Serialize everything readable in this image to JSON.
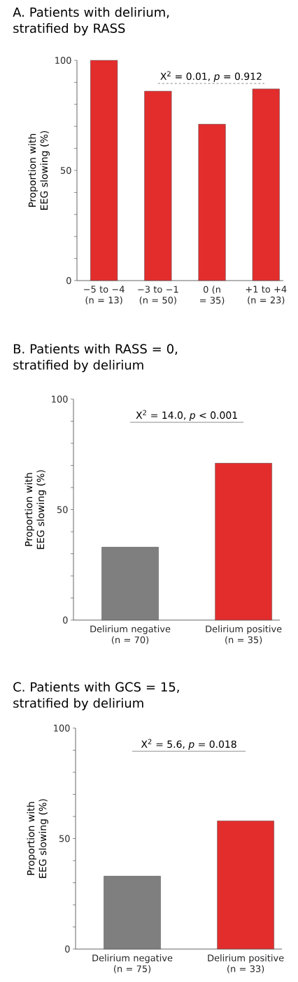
{
  "chart_data": [
    {
      "type": "bar",
      "title": "A. Patients with delirium, stratified by RASS",
      "ylabel": "Proportion with EEG slowing (%)",
      "categories": [
        "−5 to −4 (n = 13)",
        "−3 to −1 (n = 50)",
        "0 (n = 35)",
        "+1 to +4 (n = 23)"
      ],
      "values": [
        100,
        86,
        71,
        87
      ],
      "colors": [
        "#e32d2d",
        "#e32d2d",
        "#e32d2d",
        "#e32d2d"
      ],
      "ylim": [
        0,
        100
      ],
      "yticks": [
        0,
        {
          "value": 10,
          "label": null
        },
        {
          "value": 20,
          "label": null
        },
        {
          "value": 30,
          "label": null
        },
        {
          "value": 40,
          "label": null
        },
        50,
        {
          "value": 60,
          "label": null
        },
        {
          "value": 70,
          "label": null
        },
        {
          "value": 80,
          "label": null
        },
        {
          "value": 90,
          "label": null
        },
        100
      ],
      "annotations": [
        "X$^{2}$ = 0.01, *p* = 0.912"
      ]
    },
    {
      "type": "bar",
      "title": "B. Patients with RASS = 0, stratified by delirium",
      "ylabel": "Proportion with EEG slowing (%)",
      "categories": [
        "Delirium negative (n = 70)",
        "Delirium positive (n = 35)"
      ],
      "values": [
        33,
        71
      ],
      "colors": [
        "#7f7f7f",
        "#e32d2d"
      ],
      "ylim": [
        0,
        100
      ],
      "yticks": [
        0,
        {
          "value": 10,
          "label": null
        },
        {
          "value": 20,
          "label": null
        },
        {
          "value": 30,
          "label": null
        },
        {
          "value": 40,
          "label": null
        },
        50,
        {
          "value": 60,
          "label": null
        },
        {
          "value": 70,
          "label": null
        },
        {
          "value": 80,
          "label": null
        },
        {
          "value": 90,
          "label": null
        },
        100
      ],
      "annotations": [
        "X$^{2}$ = 14.0, *p* < 0.001"
      ]
    },
    {
      "type": "bar",
      "title": "C. Patients with GCS = 15, stratified by delirium",
      "ylabel": "Proportion with EEG slowing (%)",
      "categories": [
        "Delirium negative (n = 75)",
        "Delirium positive (n = 33)"
      ],
      "values": [
        33,
        58
      ],
      "colors": [
        "#7f7f7f",
        "#e32d2d"
      ],
      "ylim": [
        0,
        100
      ],
      "yticks": [
        0,
        {
          "value": 10,
          "label": null
        },
        {
          "value": 20,
          "label": null
        },
        {
          "value": 30,
          "label": null
        },
        {
          "value": 40,
          "label": null
        },
        50,
        {
          "value": 60,
          "label": null
        },
        {
          "value": 70,
          "label": null
        },
        {
          "value": 80,
          "label": null
        },
        {
          "value": 90,
          "label": null
        },
        100
      ],
      "annotations": [
        "X$^{2}$ = 5.6, *p* = 0.018"
      ]
    }
  ]
}
